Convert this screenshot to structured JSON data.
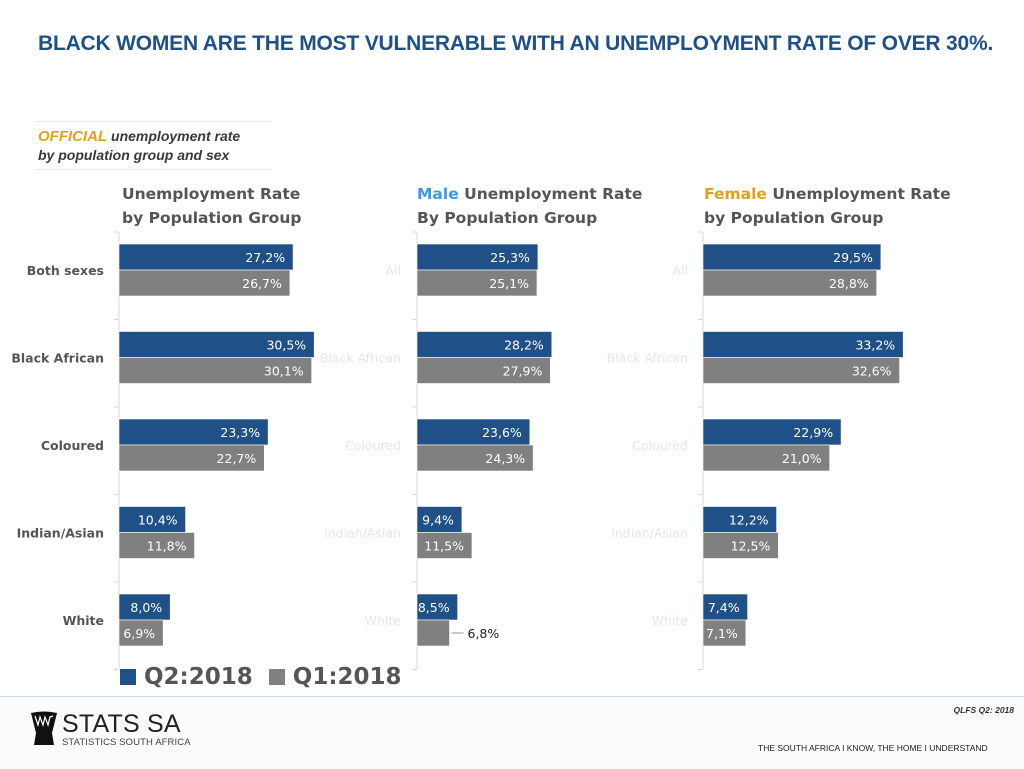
{
  "headline": "BLACK WOMEN ARE THE MOST VULNERABLE WITH AN UNEMPLOYMENT RATE OF OVER 30%.",
  "subtitle": {
    "accent": "OFFICIAL",
    "line1_rest": " unemployment rate",
    "line2": "by population group and sex"
  },
  "colors": {
    "q2": "#1f5087",
    "q1": "#808080",
    "headline": "#1f5087",
    "male_accent": "#3a9ae8",
    "female_accent": "#e3a11a"
  },
  "legend": [
    {
      "label": "Q2:2018",
      "color": "#1f5087"
    },
    {
      "label": "Q1:2018",
      "color": "#808080"
    }
  ],
  "chart_data": [
    {
      "type": "bar",
      "orientation": "horizontal",
      "title": "Unemployment Rate by Population Group",
      "title_line1": "Unemployment Rate",
      "title_line2": "by Population Group",
      "categories": [
        "Both sexes",
        "Black African",
        "Coloured",
        "Indian/Asian",
        "White"
      ],
      "series": [
        {
          "name": "Q2:2018",
          "values": [
            27.2,
            30.5,
            23.3,
            10.4,
            8.0
          ],
          "labels": [
            "27,2%",
            "30,5%",
            "23,3%",
            "10,4%",
            "8,0%"
          ]
        },
        {
          "name": "Q1:2018",
          "values": [
            26.7,
            30.1,
            22.7,
            11.8,
            6.9
          ],
          "labels": [
            "26,7%",
            "30,1%",
            "22,7%",
            "11,8%",
            "6,9%"
          ]
        }
      ],
      "xlim": [
        0,
        31
      ],
      "xlabel": "",
      "ylabel": "",
      "grid": false
    },
    {
      "type": "bar",
      "orientation": "horizontal",
      "title": "Male Unemployment Rate By Population Group",
      "title_accent": "Male",
      "title_line1_rest": " Unemployment Rate",
      "title_line2": "By Population Group",
      "categories": [
        "All",
        "Black African",
        "Coloured",
        "Indian/Asian",
        "White"
      ],
      "series": [
        {
          "name": "Q2:2018",
          "values": [
            25.3,
            28.2,
            23.6,
            9.4,
            8.5
          ],
          "labels": [
            "25,3%",
            "28,2%",
            "23,6%",
            "9,4%",
            "8,5%"
          ]
        },
        {
          "name": "Q1:2018",
          "values": [
            25.1,
            27.9,
            24.3,
            11.5,
            6.8
          ],
          "labels": [
            "25,1%",
            "27,9%",
            "24,3%",
            "11,5%",
            "6,8%"
          ]
        }
      ],
      "xlim": [
        0,
        31
      ],
      "xlabel": "",
      "ylabel": "",
      "grid": false
    },
    {
      "type": "bar",
      "orientation": "horizontal",
      "title": "Female Unemployment Rate by Population Group",
      "title_accent": "Female",
      "title_line1_rest": " Unemployment Rate",
      "title_line2": "by Population Group",
      "categories": [
        "All",
        "Black African",
        "Coloured",
        "Indian/Asian",
        "White"
      ],
      "series": [
        {
          "name": "Q2:2018",
          "values": [
            29.5,
            33.2,
            22.9,
            12.2,
            7.4
          ],
          "labels": [
            "29,5%",
            "33,2%",
            "22,9%",
            "12,2%",
            "7,4%"
          ]
        },
        {
          "name": "Q1:2018",
          "values": [
            28.8,
            32.6,
            21.0,
            12.5,
            7.1
          ],
          "labels": [
            "28,8%",
            "32,6%",
            "21,0%",
            "12,5%",
            "7,1%"
          ]
        }
      ],
      "xlim": [
        0,
        34
      ],
      "xlabel": "",
      "ylabel": "",
      "grid": false
    }
  ],
  "footer": {
    "logo_main": "STATS SA",
    "logo_sub": "STATISTICS SOUTH AFRICA",
    "source": "QLFS Q2: 2018",
    "tagline": "THE SOUTH AFRICA I KNOW, THE HOME I UNDERSTAND"
  }
}
